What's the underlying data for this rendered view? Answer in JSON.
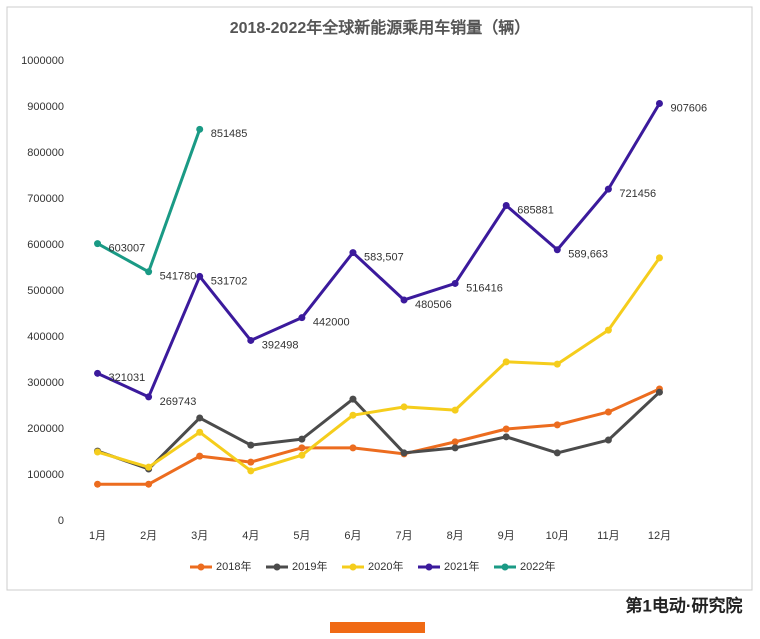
{
  "chart_data": {
    "type": "line",
    "title": "2018-2022年全球新能源乘用车销量（辆）",
    "categories": [
      "1月",
      "2月",
      "3月",
      "4月",
      "5月",
      "6月",
      "7月",
      "8月",
      "9月",
      "10月",
      "11月",
      "12月"
    ],
    "series": [
      {
        "name": "2018年",
        "color": "#ec6c1f",
        "values": [
          80000,
          80000,
          141000,
          128000,
          159000,
          159000,
          146000,
          172000,
          200000,
          209000,
          237000,
          287000
        ]
      },
      {
        "name": "2019年",
        "color": "#4b4b4b",
        "values": [
          152000,
          113000,
          224000,
          165000,
          178000,
          265000,
          148000,
          159000,
          183000,
          148000,
          176000,
          280000
        ]
      },
      {
        "name": "2020年",
        "color": "#f5cd1c",
        "values": [
          150000,
          117000,
          193000,
          109000,
          143000,
          230000,
          248000,
          241000,
          346000,
          341000,
          415000,
          572000
        ]
      },
      {
        "name": "2021年",
        "color": "#3b1a9c",
        "values": [
          321031,
          269743,
          531702,
          392498,
          442000,
          583507,
          480506,
          516416,
          685881,
          589663,
          721456,
          907606
        ],
        "value_labels": [
          "321031",
          "269743",
          "531702",
          "392498",
          "442000",
          "583,507",
          "480506",
          "516416",
          "685881",
          "589,663",
          "721456",
          "907606"
        ]
      },
      {
        "name": "2022年",
        "color": "#1a9a85",
        "values": [
          603007,
          541780,
          851485,
          null,
          null,
          null,
          null,
          null,
          null,
          null,
          null,
          null
        ],
        "value_labels": [
          "603007",
          "541780",
          "851485",
          null,
          null,
          null,
          null,
          null,
          null,
          null,
          null,
          null
        ]
      }
    ],
    "ylim": [
      0,
      1000000
    ],
    "yticks": [
      0,
      100000,
      200000,
      300000,
      400000,
      500000,
      600000,
      700000,
      800000,
      900000,
      1000000
    ],
    "grid": false,
    "legend": "bottom"
  },
  "footer": "第1电动·研究院"
}
